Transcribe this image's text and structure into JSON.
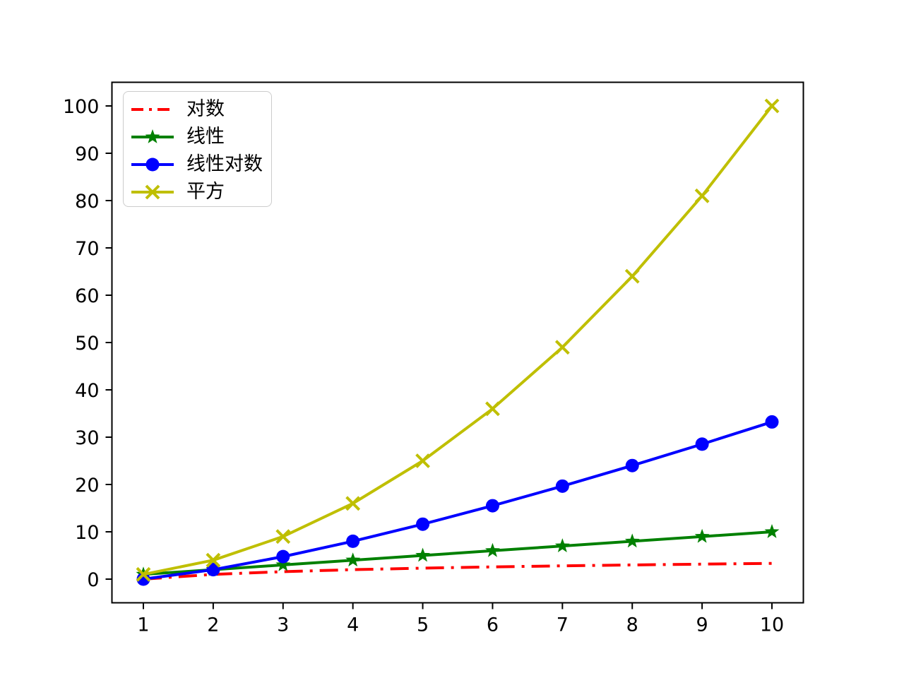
{
  "chart_data": {
    "type": "line",
    "title": "",
    "xlabel": "",
    "ylabel": "",
    "grid": false,
    "x": [
      1,
      2,
      3,
      4,
      5,
      6,
      7,
      8,
      9,
      10
    ],
    "series": [
      {
        "name": "对数",
        "color": "#ff0000",
        "linestyle": "dashdot",
        "marker": "none",
        "values": [
          0,
          1,
          1.585,
          2,
          2.322,
          2.585,
          2.807,
          3,
          3.17,
          3.322
        ]
      },
      {
        "name": "线性",
        "color": "#008000",
        "linestyle": "solid",
        "marker": "star",
        "values": [
          1,
          2,
          3,
          4,
          5,
          6,
          7,
          8,
          9,
          10
        ]
      },
      {
        "name": "线性对数",
        "color": "#0000ff",
        "linestyle": "solid",
        "marker": "circle",
        "values": [
          0,
          2,
          4.755,
          8,
          11.61,
          15.51,
          19.651,
          24,
          28.529,
          33.219
        ]
      },
      {
        "name": "平方",
        "color": "#bfbf00",
        "linestyle": "solid",
        "marker": "x",
        "values": [
          1,
          4,
          9,
          16,
          25,
          36,
          49,
          64,
          81,
          100
        ]
      }
    ],
    "xticks": [
      1,
      2,
      3,
      4,
      5,
      6,
      7,
      8,
      9,
      10
    ],
    "yticks": [
      0,
      10,
      20,
      30,
      40,
      50,
      60,
      70,
      80,
      90,
      100
    ],
    "xlim": [
      0.55,
      10.45
    ],
    "ylim": [
      -5,
      105
    ],
    "legend": {
      "position": "upper-left",
      "labels": [
        "对数",
        "线性",
        "线性对数",
        "平方"
      ]
    }
  },
  "colors": {
    "background": "#ffffff",
    "axis": "#000000",
    "tick_text": "#000000",
    "legend_border": "#cccccc"
  }
}
